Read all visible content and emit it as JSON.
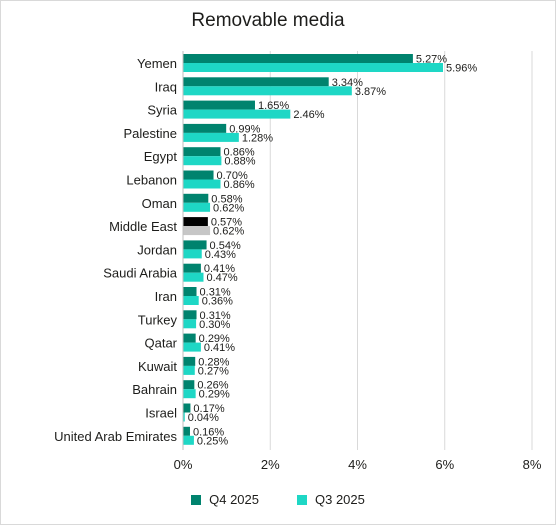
{
  "chart_data": {
    "type": "bar",
    "orientation": "horizontal",
    "title": "Removable media",
    "categories": [
      "Yemen",
      "Iraq",
      "Syria",
      "Palestine",
      "Egypt",
      "Lebanon",
      "Oman",
      "Middle East",
      "Jordan",
      "Saudi Arabia",
      "Iran",
      "Turkey",
      "Qatar",
      "Kuwait",
      "Bahrain",
      "Israel",
      "United Arab Emirates"
    ],
    "series": [
      {
        "name": "Q4 2025",
        "color": "#00836e",
        "values": [
          5.27,
          3.34,
          1.65,
          0.99,
          0.86,
          0.7,
          0.58,
          0.57,
          0.54,
          0.41,
          0.31,
          0.31,
          0.29,
          0.28,
          0.26,
          0.17,
          0.16
        ]
      },
      {
        "name": "Q3 2025",
        "color": "#1ed7c5",
        "values": [
          5.96,
          3.87,
          2.46,
          1.28,
          0.88,
          0.86,
          0.62,
          0.62,
          0.43,
          0.47,
          0.36,
          0.3,
          0.41,
          0.27,
          0.29,
          0.04,
          0.25
        ]
      }
    ],
    "value_labels": {
      "Q4 2025": [
        "5.27%",
        "3.34%",
        "1.65%",
        "0.99%",
        "0.86%",
        "0.70%",
        "0.58%",
        "0.57%",
        "0.54%",
        "0.41%",
        "0.31%",
        "0.31%",
        "0.29%",
        "0.28%",
        "0.26%",
        "0.17%",
        "0.16%"
      ],
      "Q3 2025": [
        "5.96%",
        "3.87%",
        "2.46%",
        "1.28%",
        "0.88%",
        "0.86%",
        "0.62%",
        "0.62%",
        "0.43%",
        "0.47%",
        "0.36%",
        "0.30%",
        "0.41%",
        "0.27%",
        "0.29%",
        "0.04%",
        "0.25%"
      ]
    },
    "highlight": {
      "category": "Middle East",
      "colors": [
        "#000000",
        "#c6c6c6"
      ]
    },
    "xlim": [
      0,
      8
    ],
    "xticks": [
      0,
      2,
      4,
      6,
      8
    ],
    "xtick_labels": [
      "0%",
      "2%",
      "4%",
      "6%",
      "8%"
    ],
    "grid": true,
    "legend_position": "bottom"
  }
}
